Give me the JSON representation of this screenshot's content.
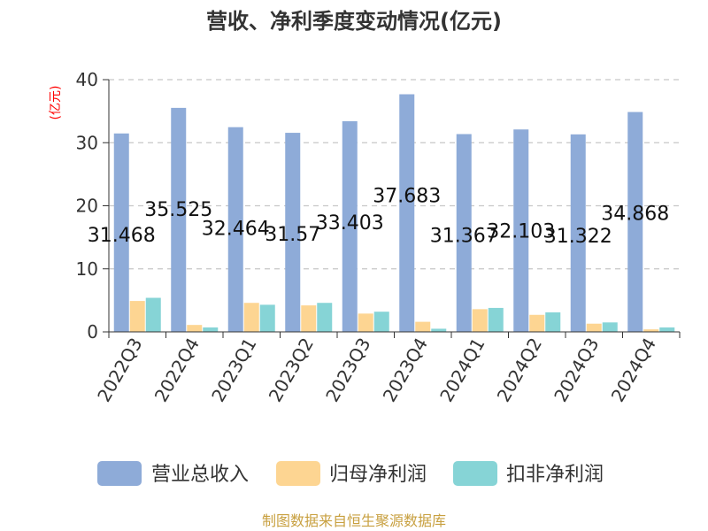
{
  "chart_data": {
    "type": "bar",
    "title": "营收、净利季度变动情况(亿元)",
    "ylabel": "(亿元)",
    "ylim": [
      0,
      40
    ],
    "yticks": [
      0,
      10,
      20,
      30,
      40
    ],
    "grid": true,
    "legend_position": "bottom",
    "categories": [
      "2022Q3",
      "2022Q4",
      "2023Q1",
      "2023Q2",
      "2023Q3",
      "2023Q4",
      "2024Q1",
      "2024Q2",
      "2024Q3",
      "2024Q4"
    ],
    "series": [
      {
        "name": "营业总收入",
        "color": "#8eabd8",
        "show_labels": true,
        "values": [
          31.468,
          35.525,
          32.464,
          31.57,
          33.403,
          37.683,
          31.367,
          32.103,
          31.322,
          34.868
        ]
      },
      {
        "name": "归母净利润",
        "color": "#fdd592",
        "show_labels": false,
        "values": [
          4.9,
          1.1,
          4.6,
          4.2,
          2.9,
          1.6,
          3.6,
          2.7,
          1.3,
          0.4
        ]
      },
      {
        "name": "扣非净利润",
        "color": "#86d4d6",
        "show_labels": false,
        "values": [
          5.4,
          0.7,
          4.3,
          4.6,
          3.2,
          0.5,
          3.8,
          3.1,
          1.5,
          0.7
        ]
      }
    ]
  },
  "ylabel_color": "#ff0000",
  "source_text": "制图数据来自恒生聚源数据库",
  "source_color": "#c8a040"
}
